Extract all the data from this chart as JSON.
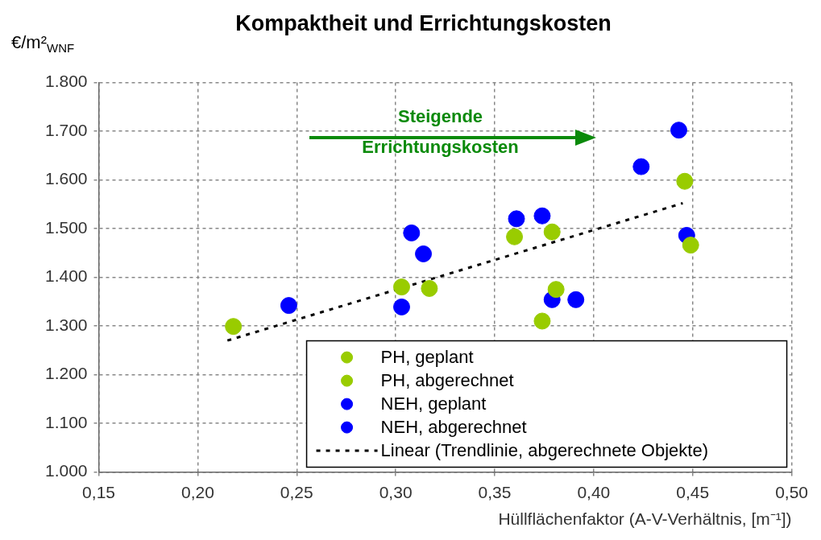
{
  "chart_data": {
    "type": "scatter",
    "title": "Kompaktheit und Errichtungskosten",
    "xlabel": "Hüllflächenfaktor (A-V-Verhältnis, [m⁻¹])",
    "ylabel": "€/m²$_{WNF}$",
    "annotations": [
      "Steigende\nErrichtungskosten"
    ],
    "xlim": [
      0.15,
      0.5
    ],
    "xticks": [
      {
        "value": 0.15,
        "label": "0,15"
      },
      {
        "value": 0.2,
        "label": "0,20"
      },
      {
        "value": 0.25,
        "label": "0,25"
      },
      {
        "value": 0.3,
        "label": "0,30"
      },
      {
        "value": 0.35,
        "label": "0,35"
      },
      {
        "value": 0.4,
        "label": "0,40"
      },
      {
        "value": 0.45,
        "label": "0,45"
      },
      {
        "value": 0.5,
        "label": "0,50"
      }
    ],
    "ylim": [
      1000,
      1800
    ],
    "yticks": [
      {
        "value": 1000,
        "label": "1.000"
      },
      {
        "value": 1100,
        "label": "1.100"
      },
      {
        "value": 1200,
        "label": "1.200"
      },
      {
        "value": 1300,
        "label": "1.300"
      },
      {
        "value": 1400,
        "label": "1.400"
      },
      {
        "value": 1500,
        "label": "1.500"
      },
      {
        "value": 1600,
        "label": "1.600"
      },
      {
        "value": 1700,
        "label": "1.700"
      },
      {
        "value": 1800,
        "label": "1.800"
      }
    ],
    "grid": true,
    "legend": "bottom right",
    "marker": "circle",
    "series": [
      {
        "name": "PH, geplant",
        "color": "#99cc00",
        "x": [
          0.36,
          0.379,
          0.317,
          0.449
        ],
        "values": [
          1483,
          1493,
          1377,
          1466
        ]
      },
      {
        "name": "PH, abgerechnet",
        "color": "#99cc00",
        "x": [
          0.218,
          0.303,
          0.374,
          0.381,
          0.446
        ],
        "values": [
          1299,
          1380,
          1310,
          1375,
          1597
        ]
      },
      {
        "name": "NEH, geplant",
        "color": "#0000ff",
        "x": [
          0.308
        ],
        "values": [
          1491
        ]
      },
      {
        "name": "NEH, abgerechnet",
        "color": "#0000ff",
        "x": [
          0.246,
          0.303,
          0.314,
          0.361,
          0.374,
          0.379,
          0.391,
          0.424,
          0.443,
          0.447
        ],
        "values": [
          1342,
          1339,
          1448,
          1520,
          1526,
          1354,
          1354,
          1627,
          1702,
          1486
        ]
      },
      {
        "name": "Linear (Trendlinie, abgerechnete Objekte)",
        "type": "line",
        "color": "#000000",
        "line_style": "dashed",
        "marker": "none",
        "x": [
          0.215,
          0.445
        ],
        "values": [
          1270,
          1552
        ]
      }
    ]
  }
}
